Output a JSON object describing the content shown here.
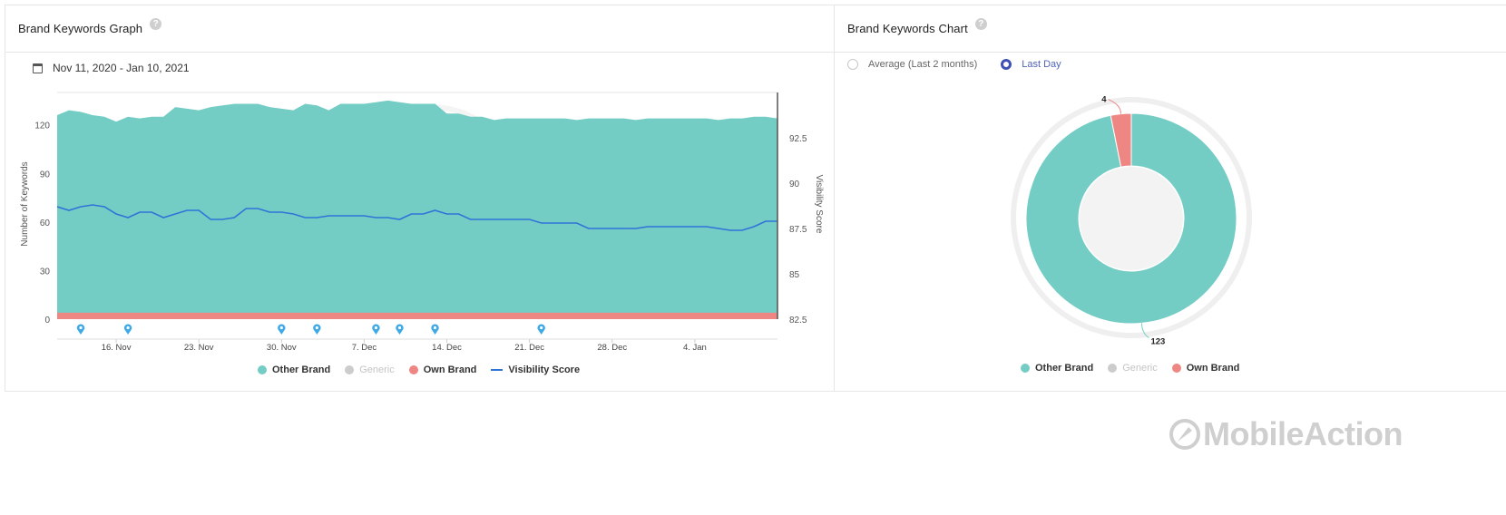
{
  "left_panel": {
    "title": "Brand Keywords Graph",
    "help_icon": "question-circle-icon",
    "date_range": "Nov 11, 2020 - Jan 10, 2021"
  },
  "right_panel": {
    "title": "Brand Keywords Chart",
    "help_icon": "question-circle-icon",
    "radio_options": [
      {
        "label": "Average (Last 2 months)",
        "checked": false
      },
      {
        "label": "Last Day",
        "checked": true
      }
    ]
  },
  "brand": {
    "name": "MobileAction",
    "logo_icon": "rocket-icon"
  },
  "colors": {
    "other_brand": "#74cdc4",
    "generic": "#cccccc",
    "own_brand": "#ee8683",
    "visibility": "#2f73d8",
    "radio_accent": "#3f51b5"
  },
  "chart_data": [
    {
      "type": "area",
      "title": "",
      "ylabel": "Number of Keywords",
      "y2label": "Visibility Score",
      "ylim": [
        0,
        140
      ],
      "y2lim": [
        82.5,
        95
      ],
      "yticks": [
        0,
        30,
        60,
        90,
        120
      ],
      "y2ticks": [
        "82.5",
        "85",
        "87.5",
        "90",
        "92.5"
      ],
      "xticks": [
        "16. Nov",
        "23. Nov",
        "30. Nov",
        "7. Dec",
        "14. Dec",
        "21. Dec",
        "28. Dec",
        "4. Jan"
      ],
      "xtick_positions": [
        5,
        12,
        19,
        26,
        33,
        40,
        47,
        54
      ],
      "legend_position": "bottom",
      "series": [
        {
          "name": "Other Brand",
          "type": "area",
          "values": [
            126,
            129,
            128,
            126,
            125,
            122,
            125,
            124,
            125,
            125,
            131,
            130,
            129,
            131,
            132,
            133,
            133,
            133,
            131,
            130,
            129,
            133,
            132,
            129,
            133,
            133,
            133,
            134,
            135,
            134,
            133,
            133,
            133,
            127,
            127,
            125,
            125,
            123,
            124,
            124,
            124,
            124,
            124,
            124,
            123,
            124,
            124,
            124,
            124,
            123,
            124,
            124,
            124,
            124,
            124,
            124,
            123,
            124,
            124,
            125,
            125,
            124
          ]
        },
        {
          "name": "Generic",
          "type": "area",
          "values": [],
          "disabled": true
        },
        {
          "name": "Own Brand",
          "type": "area",
          "values": [
            4,
            4,
            4,
            4,
            4,
            4,
            4,
            4,
            4,
            4,
            4,
            4,
            4,
            4,
            4,
            4,
            4,
            4,
            4,
            4,
            4,
            4,
            4,
            4,
            4,
            4,
            4,
            4,
            4,
            4,
            4,
            4,
            4,
            4,
            4,
            4,
            4,
            4,
            4,
            4,
            4,
            4,
            4,
            4,
            4,
            4,
            4,
            4,
            4,
            4,
            4,
            4,
            4,
            4,
            4,
            4,
            4,
            4,
            4,
            4,
            4,
            4
          ]
        },
        {
          "name": "Visibility Score",
          "type": "line",
          "values": [
            88.7,
            88.5,
            88.7,
            88.8,
            88.7,
            88.3,
            88.1,
            88.4,
            88.4,
            88.1,
            88.3,
            88.5,
            88.5,
            88.0,
            88.0,
            88.1,
            88.6,
            88.6,
            88.4,
            88.4,
            88.3,
            88.1,
            88.1,
            88.2,
            88.2,
            88.2,
            88.2,
            88.1,
            88.1,
            88.0,
            88.3,
            88.3,
            88.5,
            88.3,
            88.3,
            88.0,
            88.0,
            88.0,
            88.0,
            88.0,
            88.0,
            87.8,
            87.8,
            87.8,
            87.8,
            87.5,
            87.5,
            87.5,
            87.5,
            87.5,
            87.6,
            87.6,
            87.6,
            87.6,
            87.6,
            87.6,
            87.5,
            87.4,
            87.4,
            87.6,
            87.9,
            87.9
          ]
        }
      ],
      "flags": [
        2,
        6,
        19,
        22,
        27,
        29,
        32,
        41
      ]
    },
    {
      "type": "pie",
      "title": "",
      "legend_position": "bottom",
      "slices": [
        {
          "name": "Other Brand",
          "value": 123
        },
        {
          "name": "Generic",
          "value": 0,
          "disabled": true
        },
        {
          "name": "Own Brand",
          "value": 4
        }
      ],
      "labels": [
        "4",
        "123"
      ]
    }
  ]
}
